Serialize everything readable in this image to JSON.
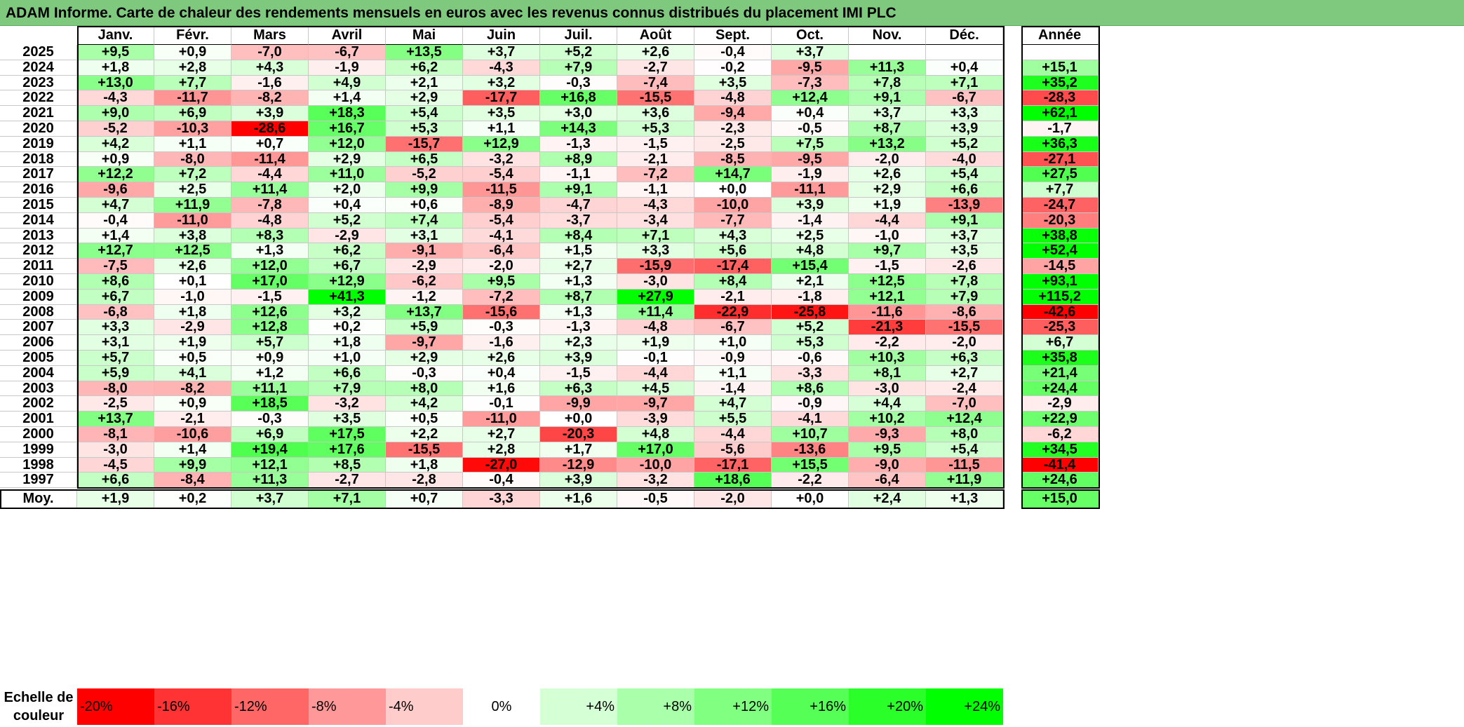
{
  "title": "ADAM Informe. Carte de chaleur des rendements mensuels en euros avec les revenus connus distribués du placement IMI PLC",
  "chart_data": {
    "type": "heatmap",
    "title": "ADAM Informe. Carte de chaleur des rendements mensuels en euros avec les revenus connus distribués du placement IMI PLC",
    "columns": [
      "Janv.",
      "Févr.",
      "Mars",
      "Avril",
      "Mai",
      "Juin",
      "Juil.",
      "Août",
      "Sept.",
      "Oct.",
      "Nov.",
      "Déc."
    ],
    "annual_header": "Année",
    "rows": [
      {
        "year": "2025",
        "values": [
          "+9,5",
          "+0,9",
          "-7,0",
          "-6,7",
          "+13,5",
          "+3,7",
          "+5,2",
          "+2,6",
          "-0,4",
          "+3,7",
          "",
          ""
        ],
        "annual": ""
      },
      {
        "year": "2024",
        "values": [
          "+1,8",
          "+2,8",
          "+4,3",
          "-1,9",
          "+6,2",
          "-4,3",
          "+7,9",
          "-2,7",
          "-0,2",
          "-9,5",
          "+11,3",
          "+0,4"
        ],
        "annual": "+15,1"
      },
      {
        "year": "2023",
        "values": [
          "+13,0",
          "+7,7",
          "-1,6",
          "+4,9",
          "+2,1",
          "+3,2",
          "-0,3",
          "-7,4",
          "+3,5",
          "-7,3",
          "+7,8",
          "+7,1"
        ],
        "annual": "+35,2"
      },
      {
        "year": "2022",
        "values": [
          "-4,3",
          "-11,7",
          "-8,2",
          "+1,4",
          "+2,9",
          "-17,7",
          "+16,8",
          "-15,5",
          "-4,8",
          "+12,4",
          "+9,1",
          "-6,7"
        ],
        "annual": "-28,3"
      },
      {
        "year": "2021",
        "values": [
          "+9,0",
          "+6,9",
          "+3,9",
          "+18,3",
          "+5,4",
          "+3,5",
          "+3,0",
          "+3,6",
          "-9,4",
          "+0,4",
          "+3,7",
          "+3,3"
        ],
        "annual": "+62,1"
      },
      {
        "year": "2020",
        "values": [
          "-5,2",
          "-10,3",
          "-28,6",
          "+16,7",
          "+5,3",
          "+1,1",
          "+14,3",
          "+5,3",
          "-2,3",
          "-0,5",
          "+8,7",
          "+3,9"
        ],
        "annual": "-1,7"
      },
      {
        "year": "2019",
        "values": [
          "+4,2",
          "+1,1",
          "+0,7",
          "+12,0",
          "-15,7",
          "+12,9",
          "-1,3",
          "-1,5",
          "-2,5",
          "+7,5",
          "+13,2",
          "+5,2"
        ],
        "annual": "+36,3"
      },
      {
        "year": "2018",
        "values": [
          "+0,9",
          "-8,0",
          "-11,4",
          "+2,9",
          "+6,5",
          "-3,2",
          "+8,9",
          "-2,1",
          "-8,5",
          "-9,5",
          "-2,0",
          "-4,0"
        ],
        "annual": "-27,1"
      },
      {
        "year": "2017",
        "values": [
          "+12,2",
          "+7,2",
          "-4,4",
          "+11,0",
          "-5,2",
          "-5,4",
          "-1,1",
          "-7,2",
          "+14,7",
          "-1,9",
          "+2,6",
          "+5,4"
        ],
        "annual": "+27,5"
      },
      {
        "year": "2016",
        "values": [
          "-9,6",
          "+2,5",
          "+11,4",
          "+2,0",
          "+9,9",
          "-11,5",
          "+9,1",
          "-1,1",
          "+0,0",
          "-11,1",
          "+2,9",
          "+6,6"
        ],
        "annual": "+7,7"
      },
      {
        "year": "2015",
        "values": [
          "+4,7",
          "+11,9",
          "-7,8",
          "+0,4",
          "+0,6",
          "-8,9",
          "-4,7",
          "-4,3",
          "-10,0",
          "+3,9",
          "+1,9",
          "-13,9"
        ],
        "annual": "-24,7"
      },
      {
        "year": "2014",
        "values": [
          "-0,4",
          "-11,0",
          "-4,8",
          "+5,2",
          "+7,4",
          "-5,4",
          "-3,7",
          "-3,4",
          "-7,7",
          "-1,4",
          "-4,4",
          "+9,1"
        ],
        "annual": "-20,3"
      },
      {
        "year": "2013",
        "values": [
          "+1,4",
          "+3,8",
          "+8,3",
          "-2,9",
          "+3,1",
          "-4,1",
          "+8,4",
          "+7,1",
          "+4,3",
          "+2,5",
          "-1,0",
          "+3,7"
        ],
        "annual": "+38,8"
      },
      {
        "year": "2012",
        "values": [
          "+12,7",
          "+12,5",
          "+1,3",
          "+6,2",
          "-9,1",
          "-6,4",
          "+1,5",
          "+3,3",
          "+5,6",
          "+4,8",
          "+9,7",
          "+3,5"
        ],
        "annual": "+52,4"
      },
      {
        "year": "2011",
        "values": [
          "-7,5",
          "+2,6",
          "+12,0",
          "+6,7",
          "-2,9",
          "-2,0",
          "+2,7",
          "-15,9",
          "-17,4",
          "+15,4",
          "-1,5",
          "-2,6"
        ],
        "annual": "-14,5"
      },
      {
        "year": "2010",
        "values": [
          "+8,6",
          "+0,1",
          "+17,0",
          "+12,9",
          "-6,2",
          "+9,5",
          "+1,3",
          "-3,0",
          "+8,4",
          "+2,1",
          "+12,5",
          "+7,8"
        ],
        "annual": "+93,1"
      },
      {
        "year": "2009",
        "values": [
          "+6,7",
          "-1,0",
          "-1,5",
          "+41,3",
          "-1,2",
          "-7,2",
          "+8,7",
          "+27,9",
          "-2,1",
          "-1,8",
          "+12,1",
          "+7,9"
        ],
        "annual": "+115,2"
      },
      {
        "year": "2008",
        "values": [
          "-6,8",
          "+1,8",
          "+12,6",
          "+3,2",
          "+13,7",
          "-15,6",
          "+1,3",
          "+11,4",
          "-22,9",
          "-25,8",
          "-11,6",
          "-8,6"
        ],
        "annual": "-42,6"
      },
      {
        "year": "2007",
        "values": [
          "+3,3",
          "-2,9",
          "+12,8",
          "+0,2",
          "+5,9",
          "-0,3",
          "-1,3",
          "-4,8",
          "-6,7",
          "+5,2",
          "-21,3",
          "-15,5"
        ],
        "annual": "-25,3"
      },
      {
        "year": "2006",
        "values": [
          "+3,1",
          "+1,9",
          "+5,7",
          "+1,8",
          "-9,7",
          "-1,6",
          "+2,3",
          "+1,9",
          "+1,0",
          "+5,3",
          "-2,2",
          "-2,0"
        ],
        "annual": "+6,7"
      },
      {
        "year": "2005",
        "values": [
          "+5,7",
          "+0,5",
          "+0,9",
          "+1,0",
          "+2,9",
          "+2,6",
          "+3,9",
          "-0,1",
          "-0,9",
          "-0,6",
          "+10,3",
          "+6,3"
        ],
        "annual": "+35,8"
      },
      {
        "year": "2004",
        "values": [
          "+5,9",
          "+4,1",
          "+1,2",
          "+6,6",
          "-0,3",
          "+0,4",
          "-1,5",
          "-4,4",
          "+1,1",
          "-3,3",
          "+8,1",
          "+2,7"
        ],
        "annual": "+21,4"
      },
      {
        "year": "2003",
        "values": [
          "-8,0",
          "-8,2",
          "+11,1",
          "+7,9",
          "+8,0",
          "+1,6",
          "+6,3",
          "+4,5",
          "-1,4",
          "+8,6",
          "-3,0",
          "-2,4"
        ],
        "annual": "+24,4"
      },
      {
        "year": "2002",
        "values": [
          "-2,5",
          "+0,9",
          "+18,5",
          "-3,2",
          "+4,2",
          "-0,1",
          "-9,9",
          "-9,7",
          "+4,7",
          "-0,9",
          "+4,4",
          "-7,0"
        ],
        "annual": "-2,9"
      },
      {
        "year": "2001",
        "values": [
          "+13,7",
          "-2,1",
          "-0,3",
          "+3,5",
          "+0,5",
          "-11,0",
          "+0,0",
          "-3,9",
          "+5,5",
          "-4,1",
          "+10,2",
          "+12,4"
        ],
        "annual": "+22,9"
      },
      {
        "year": "2000",
        "values": [
          "-8,1",
          "-10,6",
          "+6,9",
          "+17,5",
          "+2,2",
          "+2,7",
          "-20,3",
          "+4,8",
          "-4,4",
          "+10,7",
          "-9,3",
          "+8,0"
        ],
        "annual": "-6,2"
      },
      {
        "year": "1999",
        "values": [
          "-3,0",
          "+1,4",
          "+19,4",
          "+17,6",
          "-15,5",
          "+2,8",
          "+1,7",
          "+17,0",
          "-5,6",
          "-13,6",
          "+9,5",
          "+5,4"
        ],
        "annual": "+34,5"
      },
      {
        "year": "1998",
        "values": [
          "-4,5",
          "+9,9",
          "+12,1",
          "+8,5",
          "+1,8",
          "-27,0",
          "-12,9",
          "-10,0",
          "-17,1",
          "+15,5",
          "-9,0",
          "-11,5"
        ],
        "annual": "-41,4"
      },
      {
        "year": "1997",
        "values": [
          "+6,6",
          "-8,4",
          "+11,3",
          "-2,7",
          "-2,8",
          "-0,4",
          "+3,9",
          "-3,2",
          "+18,6",
          "-2,2",
          "-6,4",
          "+11,9"
        ],
        "annual": "+24,6"
      }
    ],
    "average": {
      "label": "Moy.",
      "values": [
        "+1,9",
        "+0,2",
        "+3,7",
        "+7,1",
        "+0,7",
        "-3,3",
        "+1,6",
        "-0,5",
        "-2,0",
        "+0,0",
        "+2,4",
        "+1,3"
      ],
      "annual": "+15,0"
    },
    "color_scale": {
      "label": "Echelle de couleur",
      "stops": [
        "-20%",
        "-16%",
        "-12%",
        "-8%",
        "-4%",
        "0%",
        "+4%",
        "+8%",
        "+12%",
        "+16%",
        "+20%",
        "+24%"
      ],
      "stop_values": [
        -20,
        -16,
        -12,
        -8,
        -4,
        0,
        4,
        8,
        12,
        16,
        20,
        24
      ],
      "negative_color": "#ff0000",
      "positive_color": "#00ff00",
      "neutral_color": "#ffffff"
    }
  }
}
